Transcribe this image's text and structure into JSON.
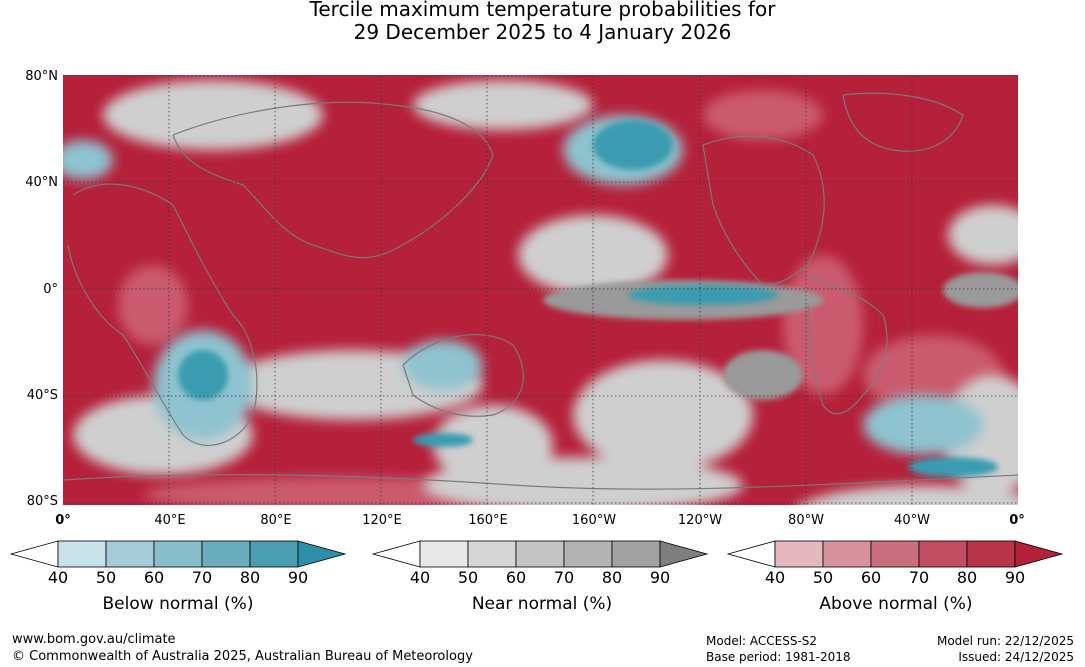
{
  "title": {
    "line1": "Tercile maximum temperature probabilities for",
    "line2": "29 December 2025 to 4 January 2026"
  },
  "map": {
    "lat_labels": [
      "80°N",
      "40°N",
      "0°",
      "40°S",
      "80°S"
    ],
    "lon_labels": [
      "0°",
      "40°E",
      "80°E",
      "120°E",
      "160°E",
      "160°W",
      "120°W",
      "80°W",
      "40°W",
      "0°"
    ],
    "colors": {
      "above": "#b5203a",
      "above_light": "#d9808f",
      "near": "#c8c8c8",
      "near_dark": "#8c8c8c",
      "below": "#3a9bb0",
      "below_light": "#a9d2dc",
      "coastline": "#7a7a7a",
      "grid": "#333333"
    }
  },
  "legends": [
    {
      "title": "Below normal (%)",
      "ticks": [
        "40",
        "50",
        "60",
        "70",
        "80",
        "90"
      ],
      "colors": [
        "#ffffff",
        "#c9e2e9",
        "#a5ccd6",
        "#88bdc9",
        "#6aadbd",
        "#4b9eb2",
        "#2e8ea5"
      ]
    },
    {
      "title": "Near normal (%)",
      "ticks": [
        "40",
        "50",
        "60",
        "70",
        "80",
        "90"
      ],
      "colors": [
        "#ffffff",
        "#e8e8e8",
        "#d6d6d6",
        "#c4c4c4",
        "#b3b3b3",
        "#a2a2a2",
        "#7e7e7e"
      ]
    },
    {
      "title": "Above normal (%)",
      "ticks": [
        "40",
        "50",
        "60",
        "70",
        "80",
        "90"
      ],
      "colors": [
        "#ffffff",
        "#e5b8bf",
        "#d6939e",
        "#c96f7e",
        "#c14e61",
        "#b83449",
        "#b5203a"
      ]
    }
  ],
  "footer": {
    "website": "www.bom.gov.au/climate",
    "copyright": "© Commonwealth of Australia 2025, Australian Bureau of Meteorology",
    "model": "Model: ACCESS-S2",
    "base_period": "Base period: 1981-2018",
    "model_run": "Model run: 22/12/2025",
    "issued": "Issued: 24/12/2025"
  }
}
